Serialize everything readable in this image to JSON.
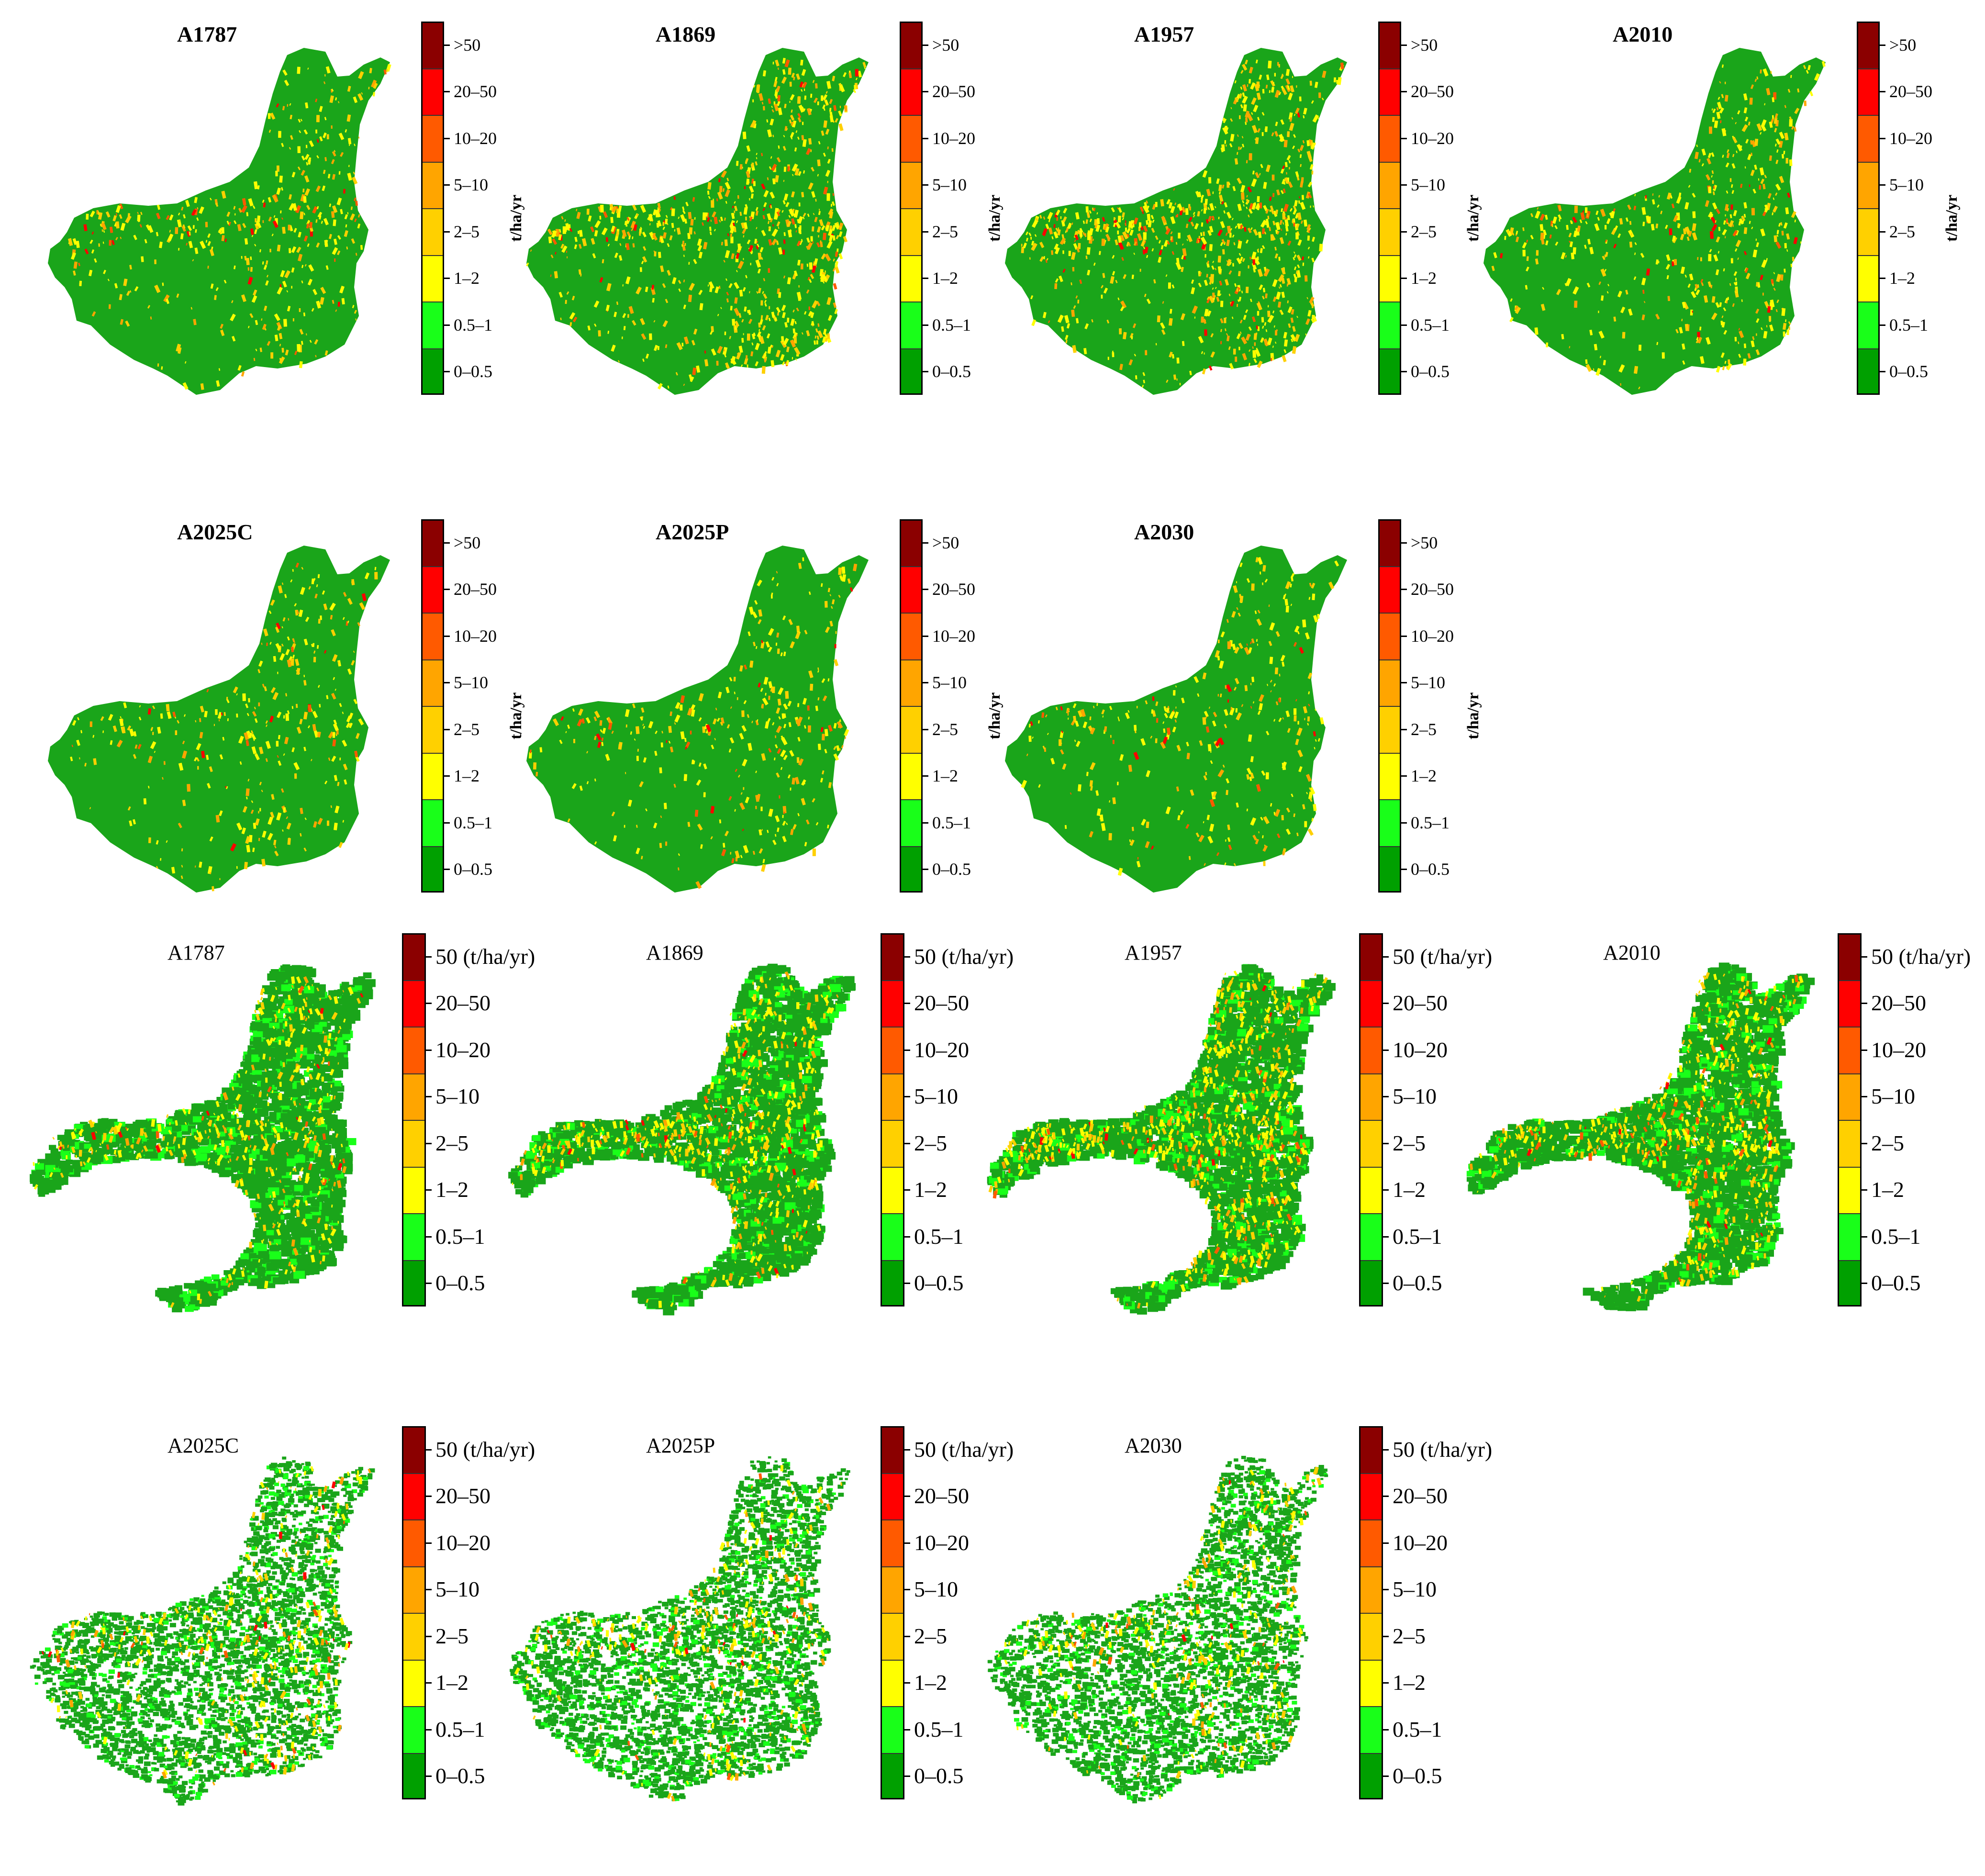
{
  "panels": [
    {
      "title": "A1787",
      "style": "bold",
      "map": "full",
      "intensity": 0.35
    },
    {
      "title": "A1869",
      "style": "bold",
      "map": "full",
      "intensity": 0.75
    },
    {
      "title": "A1957",
      "style": "bold",
      "map": "full",
      "intensity": 0.8
    },
    {
      "title": "A2010",
      "style": "bold",
      "map": "full",
      "intensity": 0.45
    },
    {
      "title": "A2025C",
      "style": "bold",
      "map": "full",
      "intensity": 0.25
    },
    {
      "title": "A2025P",
      "style": "bold",
      "map": "full",
      "intensity": 0.25
    },
    {
      "title": "A2030",
      "style": "bold",
      "map": "full",
      "intensity": 0.25
    },
    {
      "title": "A1787",
      "style": "plain",
      "map": "masked",
      "intensity": 0.35
    },
    {
      "title": "A1869",
      "style": "plain",
      "map": "masked",
      "intensity": 0.5
    },
    {
      "title": "A1957",
      "style": "plain",
      "map": "masked",
      "intensity": 0.7
    },
    {
      "title": "A2010",
      "style": "plain",
      "map": "masked",
      "intensity": 0.55
    },
    {
      "title": "A2025C",
      "style": "plain",
      "map": "sparse",
      "intensity": 0.25
    },
    {
      "title": "A2025P",
      "style": "plain",
      "map": "sparse",
      "intensity": 0.25
    },
    {
      "title": "A2030",
      "style": "plain",
      "map": "sparse",
      "intensity": 0.25
    }
  ],
  "legend_bold": {
    "unit": "t/ha/yr",
    "labels": [
      ">50",
      "20–50",
      "10–20",
      "5–10",
      "2–5",
      "1–2",
      "0.5–1",
      "0–0.5"
    ]
  },
  "legend_plain": {
    "labels": [
      "50 (t/ha/yr)",
      "20–50",
      "10–20",
      "5–10",
      "2–5",
      "1–2",
      "0.5–1",
      "0–0.5"
    ]
  },
  "classes": [
    {
      "range": ">50",
      "color": "#8b0000"
    },
    {
      "range": "20–50",
      "color": "#ff0000"
    },
    {
      "range": "10–20",
      "color": "#ff5a00"
    },
    {
      "range": "5–10",
      "color": "#ffa500"
    },
    {
      "range": "2–5",
      "color": "#ffd000"
    },
    {
      "range": "1–2",
      "color": "#ffff00"
    },
    {
      "range": "0.5–1",
      "color": "#19ff19"
    },
    {
      "range": "0–0.5",
      "color": "#00a000"
    }
  ],
  "map_color": "#1aa51a"
}
